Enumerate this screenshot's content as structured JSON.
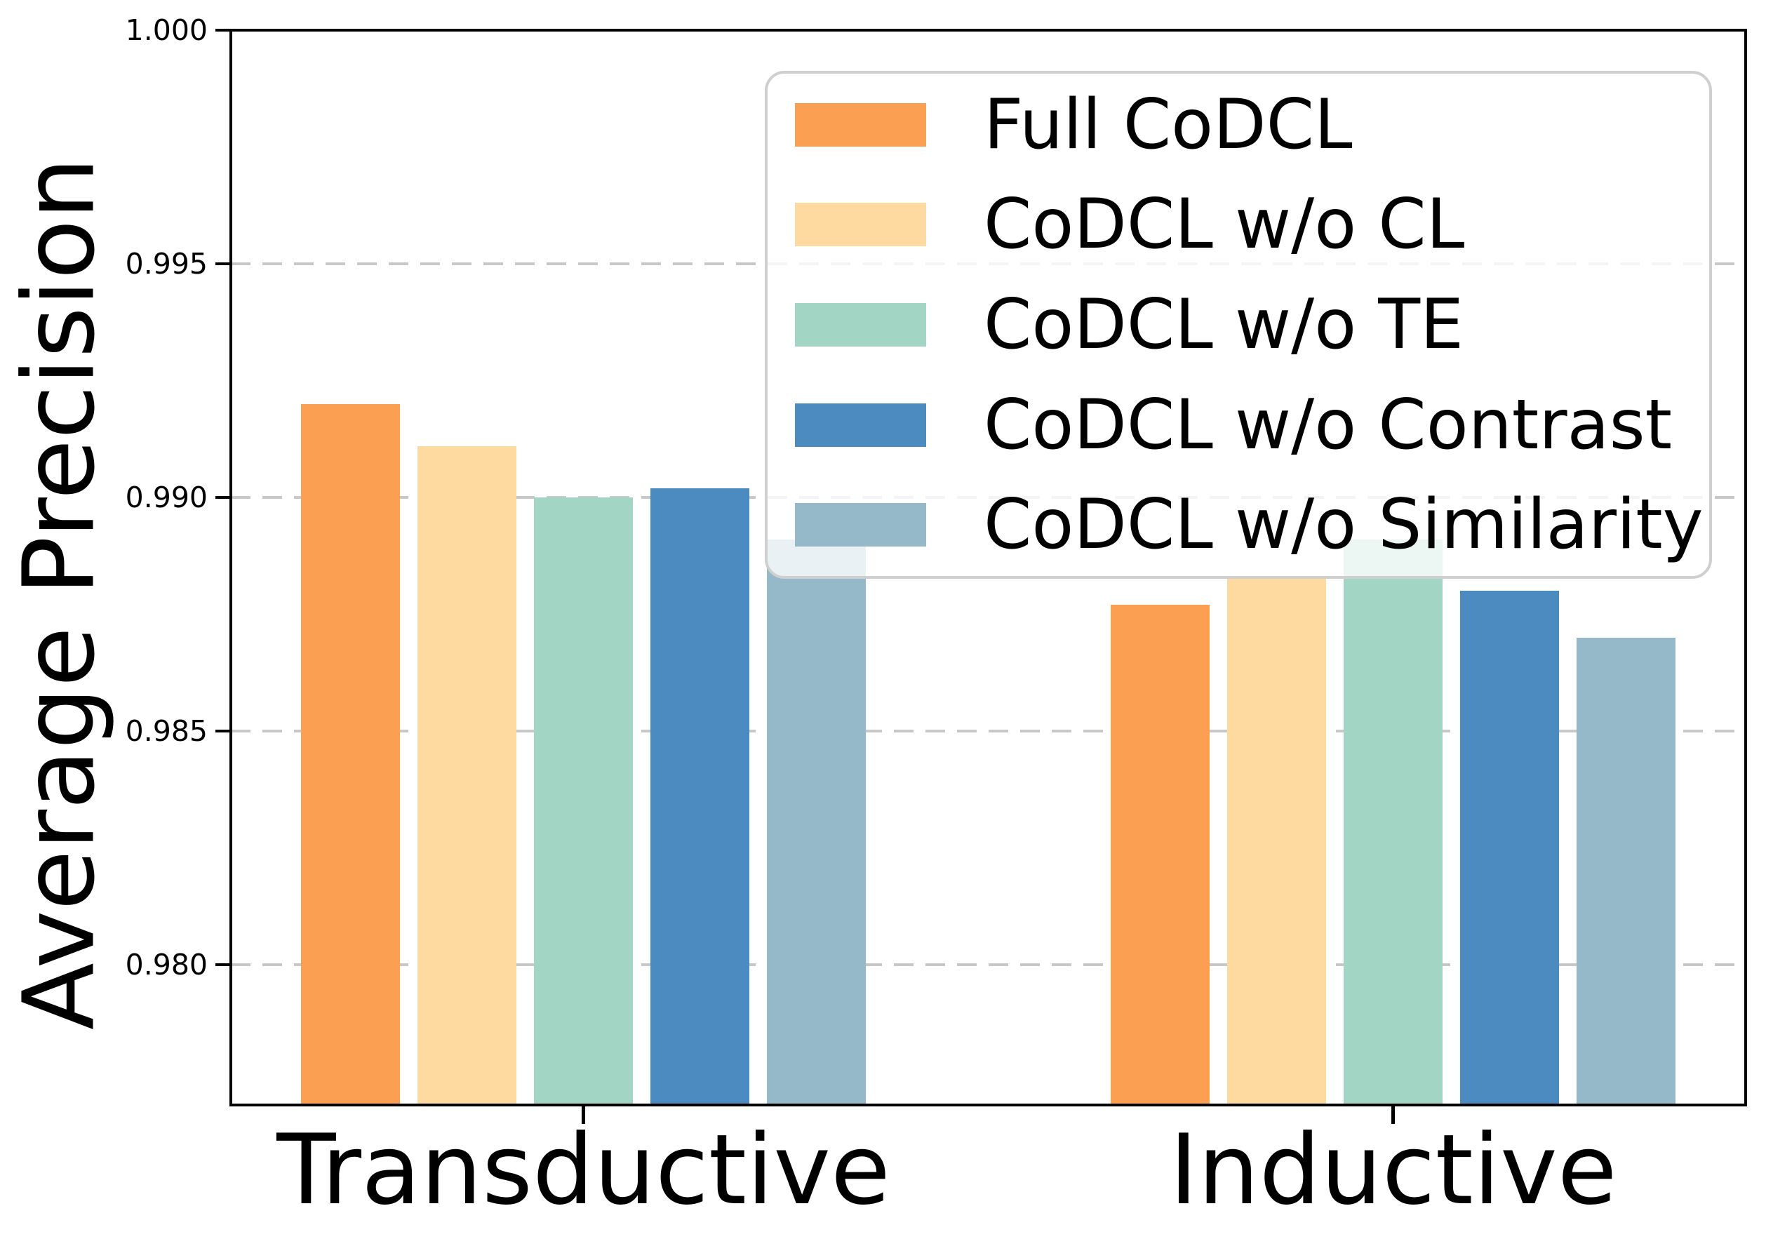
{
  "figure": {
    "ylabel": "Average Precision"
  },
  "chart_data": {
    "type": "bar",
    "title": "",
    "ylabel": "Average Precision",
    "categories": [
      "Transductive",
      "Inductive"
    ],
    "series": [
      {
        "name": "Full CoDCL",
        "color": "#FBA052",
        "values": [
          0.992,
          0.9877
        ]
      },
      {
        "name": "CoDCL w/o CL",
        "color": "#FED9A0",
        "values": [
          0.9911,
          0.9883
        ]
      },
      {
        "name": "CoDCL w/o TE",
        "color": "#A2D5C3",
        "values": [
          0.99,
          0.9891
        ]
      },
      {
        "name": "CoDCL w/o Contrast",
        "color": "#4C8BBF",
        "values": [
          0.9902,
          0.988
        ]
      },
      {
        "name": "CoDCL w/o Similarity",
        "color": "#96B9CA",
        "values": [
          0.9891,
          0.987
        ]
      }
    ],
    "ylim": [
      0.977,
      1.0
    ],
    "yticks": [
      {
        "value": 1.0,
        "label": "1.000"
      },
      {
        "value": 0.995,
        "label": "0.995"
      },
      {
        "value": 0.99,
        "label": "0.990"
      },
      {
        "value": 0.985,
        "label": "0.985"
      },
      {
        "value": 0.98,
        "label": "0.980"
      }
    ],
    "grid": "horizontal-dashed",
    "grid_color": "#c8c8c8",
    "legend_position": "upper-right"
  }
}
